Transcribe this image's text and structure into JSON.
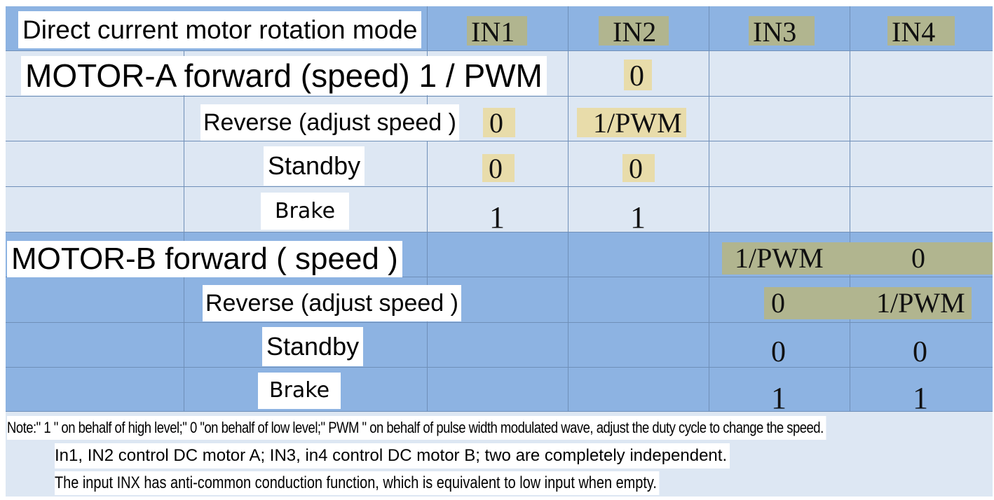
{
  "header": {
    "title": "Direct current motor rotation mode",
    "columns": [
      "IN1",
      "IN2",
      "IN3",
      "IN4"
    ]
  },
  "motor_a": {
    "forward_label": "MOTOR-A forward (speed) 1 / PWM",
    "forward_in2": "0",
    "reverse_label": "Reverse (adjust speed )",
    "reverse_in1": "0",
    "reverse_in2": "1/PWM",
    "standby_label": "Standby",
    "standby_in1": "0",
    "standby_in2": "0",
    "brake_label": "Brake",
    "brake_in1": "1",
    "brake_in2": "1"
  },
  "motor_b": {
    "forward_label": "MOTOR-B forward ( speed )",
    "forward_in3": "1/PWM",
    "forward_in4": "0",
    "reverse_label": "Reverse (adjust speed )",
    "reverse_in3": "0",
    "reverse_in4": "1/PWM",
    "standby_label": "Standby",
    "standby_in3": "0",
    "standby_in4": "0",
    "brake_label": "Brake",
    "brake_in3": "1",
    "brake_in4": "1"
  },
  "notes": {
    "line1": "Note:\" 1 \" on behalf of high level;\" 0 \"on behalf of low level;\" PWM \" on behalf of pulse width modulated wave, adjust the duty cycle to change the speed.",
    "line2": "In1, IN2 control DC motor A; IN3, in4 control DC motor B; two are completely independent.",
    "line3": "The input INX has anti-common conduction function, which is equivalent to low input when empty."
  },
  "colors": {
    "light_row": "#dde7f3",
    "dark_row": "#8db3e2",
    "highlight_light": "#e8dcaa",
    "highlight_dark": "#b1b58f"
  }
}
